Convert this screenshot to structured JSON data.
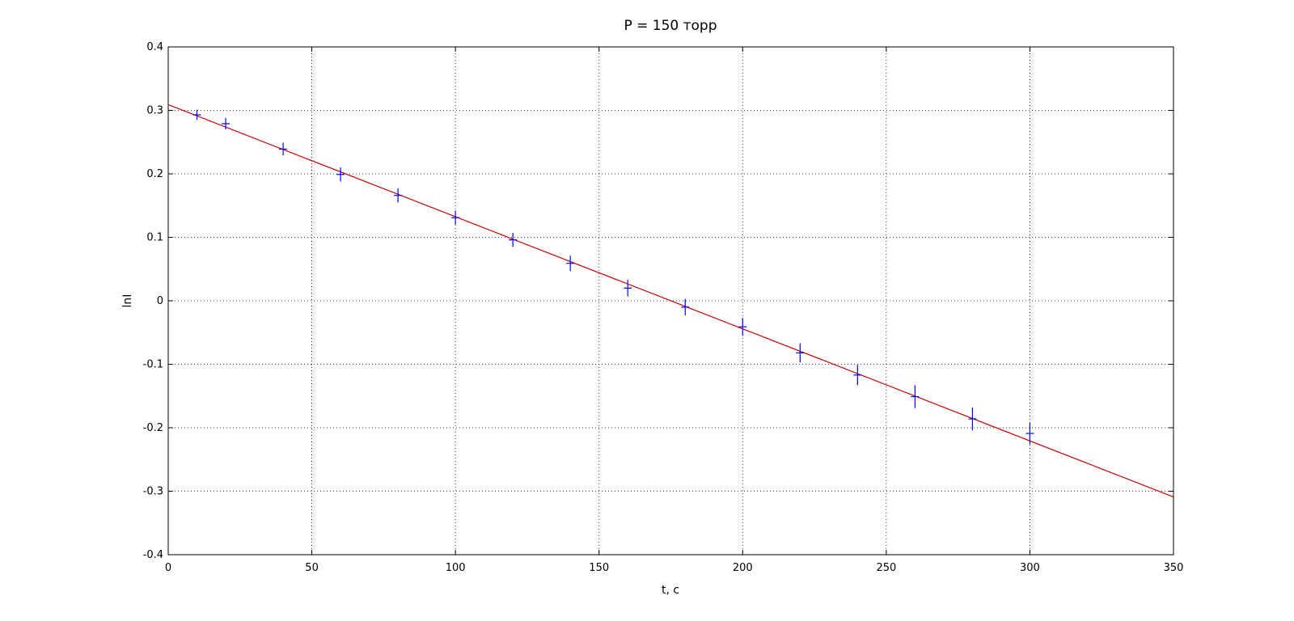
{
  "chart_data": {
    "type": "scatter",
    "title": "P = 150 торр",
    "xlabel": "t, c",
    "ylabel": "lnI",
    "xlim": [
      0,
      350
    ],
    "ylim": [
      -0.4,
      0.4
    ],
    "xticks": [
      "0",
      "50",
      "100",
      "150",
      "200",
      "250",
      "300",
      "350"
    ],
    "yticks": [
      "0.4",
      "0.3",
      "0.2",
      "0.1",
      "0",
      "-0.1",
      "-0.2",
      "-0.3",
      "-0.4"
    ],
    "grid": true,
    "series": [
      {
        "type": "scatter-errorbar",
        "marker": "+",
        "color": "#0000ff",
        "x": [
          10,
          20,
          40,
          60,
          80,
          100,
          120,
          140,
          160,
          180,
          200,
          220,
          240,
          260,
          280,
          300
        ],
        "y": [
          0.293,
          0.279,
          0.239,
          0.199,
          0.166,
          0.131,
          0.096,
          0.059,
          0.02,
          -0.01,
          -0.041,
          -0.082,
          -0.117,
          -0.151,
          -0.186,
          -0.209
        ],
        "err": [
          0.008,
          0.009,
          0.01,
          0.011,
          0.011,
          0.011,
          0.011,
          0.012,
          0.013,
          0.013,
          0.014,
          0.015,
          0.016,
          0.018,
          0.018,
          0.017
        ]
      },
      {
        "type": "line",
        "color": "#cc0000",
        "x": [
          0,
          350
        ],
        "y": [
          0.309,
          -0.309
        ]
      }
    ]
  }
}
